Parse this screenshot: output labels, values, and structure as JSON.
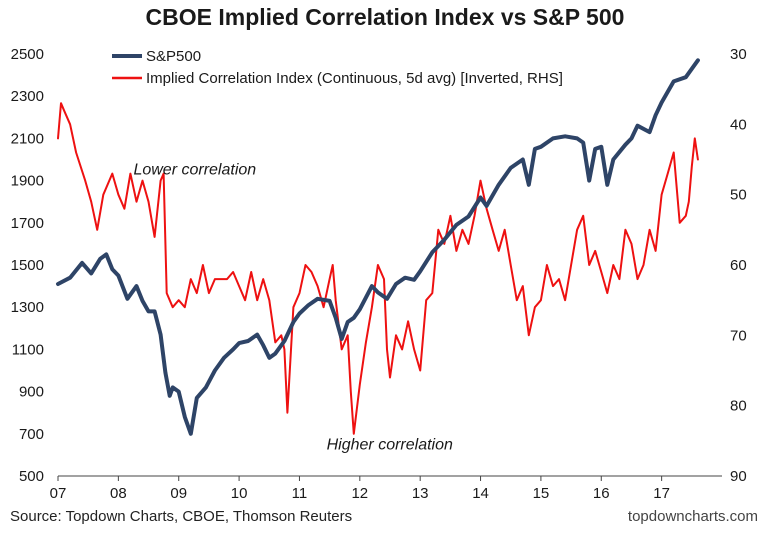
{
  "chart_data": {
    "type": "line",
    "title": "CBOE Implied Correlation Index vs S&P 500",
    "x_tick_labels": [
      "07",
      "08",
      "09",
      "10",
      "11",
      "12",
      "13",
      "14",
      "15",
      "16",
      "17"
    ],
    "x_ticks": [
      2007,
      2008,
      2009,
      2010,
      2011,
      2012,
      2013,
      2014,
      2015,
      2016,
      2017
    ],
    "xlim": [
      2007,
      2018.0
    ],
    "y_left": {
      "ticks": [
        "500",
        "700",
        "900",
        "1100",
        "1300",
        "1500",
        "1700",
        "1900",
        "2100",
        "2300",
        "2500"
      ],
      "ylim": [
        500,
        2500
      ]
    },
    "y_right": {
      "ticks": [
        "30",
        "40",
        "50",
        "60",
        "70",
        "80",
        "90"
      ],
      "ylim": [
        30,
        90
      ],
      "inverted": true
    },
    "grid": false,
    "legend_placement": "top-left",
    "series": [
      {
        "name": "S&P500",
        "axis": "left",
        "color": "#2e4467",
        "x": [
          2007.0,
          2007.2,
          2007.4,
          2007.55,
          2007.7,
          2007.8,
          2007.9,
          2008.0,
          2008.15,
          2008.3,
          2008.4,
          2008.5,
          2008.6,
          2008.7,
          2008.78,
          2008.85,
          2008.9,
          2009.0,
          2009.1,
          2009.2,
          2009.3,
          2009.45,
          2009.6,
          2009.75,
          2009.9,
          2010.0,
          2010.15,
          2010.3,
          2010.4,
          2010.5,
          2010.6,
          2010.75,
          2010.9,
          2011.0,
          2011.15,
          2011.3,
          2011.5,
          2011.6,
          2011.7,
          2011.8,
          2011.9,
          2012.0,
          2012.2,
          2012.3,
          2012.45,
          2012.6,
          2012.75,
          2012.9,
          2013.0,
          2013.2,
          2013.4,
          2013.6,
          2013.8,
          2014.0,
          2014.1,
          2014.3,
          2014.5,
          2014.7,
          2014.8,
          2014.9,
          2015.0,
          2015.2,
          2015.4,
          2015.6,
          2015.7,
          2015.8,
          2015.9,
          2016.0,
          2016.1,
          2016.2,
          2016.4,
          2016.5,
          2016.6,
          2016.8,
          2016.9,
          2017.0,
          2017.2,
          2017.4,
          2017.5,
          2017.6
        ],
        "values": [
          1410,
          1440,
          1510,
          1460,
          1530,
          1550,
          1480,
          1450,
          1340,
          1400,
          1330,
          1280,
          1280,
          1170,
          990,
          880,
          920,
          900,
          780,
          700,
          870,
          920,
          1000,
          1060,
          1100,
          1130,
          1140,
          1170,
          1120,
          1060,
          1080,
          1140,
          1230,
          1270,
          1310,
          1340,
          1330,
          1250,
          1150,
          1230,
          1250,
          1290,
          1400,
          1370,
          1340,
          1410,
          1440,
          1430,
          1470,
          1560,
          1620,
          1690,
          1730,
          1820,
          1780,
          1880,
          1960,
          2000,
          1880,
          2050,
          2060,
          2100,
          2110,
          2100,
          2080,
          1900,
          2050,
          2060,
          1880,
          2000,
          2070,
          2100,
          2160,
          2130,
          2210,
          2270,
          2370,
          2390,
          2430,
          2470
        ]
      },
      {
        "name": "Implied Correlation Index (Continuous, 5d avg) [Inverted, RHS]",
        "axis": "right",
        "color": "#ee1111",
        "x": [
          2007.0,
          2007.05,
          2007.1,
          2007.2,
          2007.3,
          2007.45,
          2007.55,
          2007.65,
          2007.75,
          2007.85,
          2007.9,
          2008.0,
          2008.1,
          2008.2,
          2008.3,
          2008.4,
          2008.5,
          2008.6,
          2008.7,
          2008.75,
          2008.8,
          2008.9,
          2009.0,
          2009.1,
          2009.2,
          2009.3,
          2009.4,
          2009.5,
          2009.6,
          2009.7,
          2009.8,
          2009.9,
          2010.0,
          2010.1,
          2010.2,
          2010.3,
          2010.4,
          2010.5,
          2010.6,
          2010.7,
          2010.75,
          2010.8,
          2010.9,
          2011.0,
          2011.1,
          2011.2,
          2011.3,
          2011.4,
          2011.5,
          2011.55,
          2011.6,
          2011.7,
          2011.8,
          2011.85,
          2011.9,
          2012.0,
          2012.1,
          2012.2,
          2012.3,
          2012.4,
          2012.45,
          2012.5,
          2012.6,
          2012.7,
          2012.8,
          2012.9,
          2013.0,
          2013.1,
          2013.2,
          2013.3,
          2013.4,
          2013.5,
          2013.6,
          2013.7,
          2013.8,
          2013.9,
          2014.0,
          2014.1,
          2014.2,
          2014.3,
          2014.4,
          2014.5,
          2014.6,
          2014.7,
          2014.8,
          2014.9,
          2015.0,
          2015.1,
          2015.2,
          2015.3,
          2015.4,
          2015.5,
          2015.6,
          2015.7,
          2015.8,
          2015.9,
          2016.0,
          2016.1,
          2016.2,
          2016.3,
          2016.4,
          2016.5,
          2016.6,
          2016.7,
          2016.8,
          2016.9,
          2017.0,
          2017.1,
          2017.2,
          2017.3,
          2017.4,
          2017.45,
          2017.5,
          2017.55,
          2017.6
        ],
        "values": [
          42,
          37,
          38,
          40,
          44,
          48,
          51,
          55,
          50,
          48,
          47,
          50,
          52,
          47,
          51,
          48,
          51,
          56,
          48,
          47,
          64,
          66,
          65,
          66,
          62,
          64,
          60,
          64,
          62,
          62,
          62,
          61,
          63,
          65,
          61,
          65,
          62,
          65,
          71,
          70,
          72,
          81,
          66,
          64,
          60,
          61,
          63,
          66,
          62,
          60,
          65,
          72,
          70,
          78,
          84,
          77,
          71,
          66,
          60,
          62,
          72,
          76,
          70,
          72,
          68,
          72,
          75,
          65,
          64,
          55,
          57,
          53,
          58,
          55,
          57,
          53,
          48,
          52,
          55,
          58,
          55,
          60,
          65,
          63,
          70,
          66,
          65,
          60,
          63,
          62,
          65,
          60,
          55,
          53,
          60,
          58,
          61,
          64,
          60,
          62,
          55,
          57,
          62,
          60,
          55,
          58,
          50,
          47,
          44,
          54,
          53,
          51,
          46,
          42,
          45
        ]
      }
    ],
    "annotations": [
      {
        "text": "Lower correlation",
        "x": 2008.25,
        "y_left": 1930
      },
      {
        "text": "Higher correlation",
        "x": 2011.45,
        "y_left": 625
      }
    ],
    "source": "Source: Topdown Charts, CBOE, Thomson Reuters",
    "brand": "topdowncharts.com"
  }
}
